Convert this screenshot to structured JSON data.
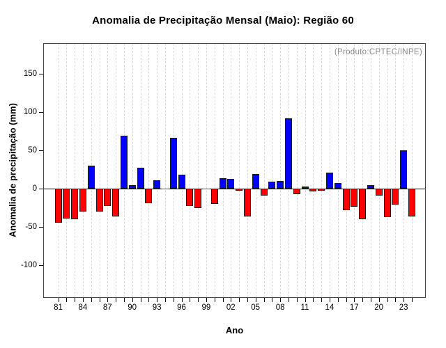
{
  "header": {
    "title": "Anomalia de Precipitação Mensal (Maio): Região 60"
  },
  "chart_data": {
    "type": "bar",
    "title": "Anomalia de Precipitação Mensal (Maio): Região 60",
    "xlabel": "Ano",
    "ylabel": "Anomalia de precipitação (mm)",
    "annotation": "(Produto:CPTEC/INPE)",
    "years": [
      1981,
      1982,
      1983,
      1984,
      1985,
      1986,
      1987,
      1988,
      1989,
      1990,
      1991,
      1992,
      1993,
      1994,
      1995,
      1996,
      1997,
      1998,
      1999,
      2000,
      2001,
      2002,
      2003,
      2004,
      2005,
      2006,
      2007,
      2008,
      2009,
      2010,
      2011,
      2012,
      2013,
      2014,
      2015,
      2016,
      2017,
      2018,
      2019,
      2020,
      2021,
      2022,
      2023,
      2024
    ],
    "values": [
      -45,
      -39,
      -40,
      -30,
      30,
      -30,
      -23,
      -36,
      69,
      5,
      27,
      -19,
      11,
      0,
      67,
      18,
      -23,
      -25,
      0,
      -20,
      14,
      13,
      -3,
      -36,
      19,
      -9,
      9,
      10,
      92,
      -7,
      3,
      -4,
      -3,
      21,
      7,
      -28,
      -24,
      -40,
      5,
      -9,
      -37,
      -21,
      50,
      -36
    ],
    "positive_color": "#0000ff",
    "negative_color": "#ff0000",
    "bar_border_color": "#1a1a1a",
    "annotation_color": "#8a8a8a",
    "gridline_color": "#d8d8d8",
    "grid": "vertical dashed line per year",
    "legend_position": "none",
    "ylim": [
      -142,
      189.5
    ],
    "yticks": [
      150,
      100,
      50,
      0,
      -50,
      -100
    ],
    "xtick_every_years": 3,
    "xtick_labels": [
      "81",
      "84",
      "87",
      "90",
      "93",
      "96",
      "99",
      "02",
      "05",
      "08",
      "11",
      "14",
      "17",
      "20",
      "23"
    ]
  }
}
